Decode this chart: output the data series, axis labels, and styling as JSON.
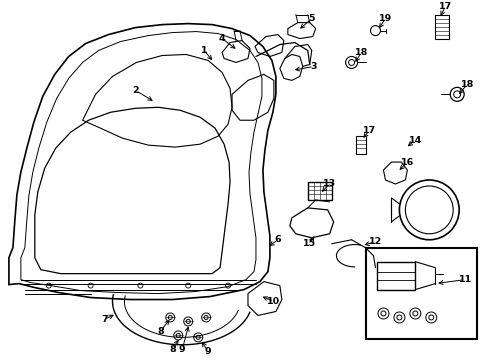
{
  "bg_color": "#ffffff",
  "line_color": "#000000",
  "text_color": "#000000",
  "figsize": [
    4.89,
    3.6
  ],
  "dpi": 100
}
